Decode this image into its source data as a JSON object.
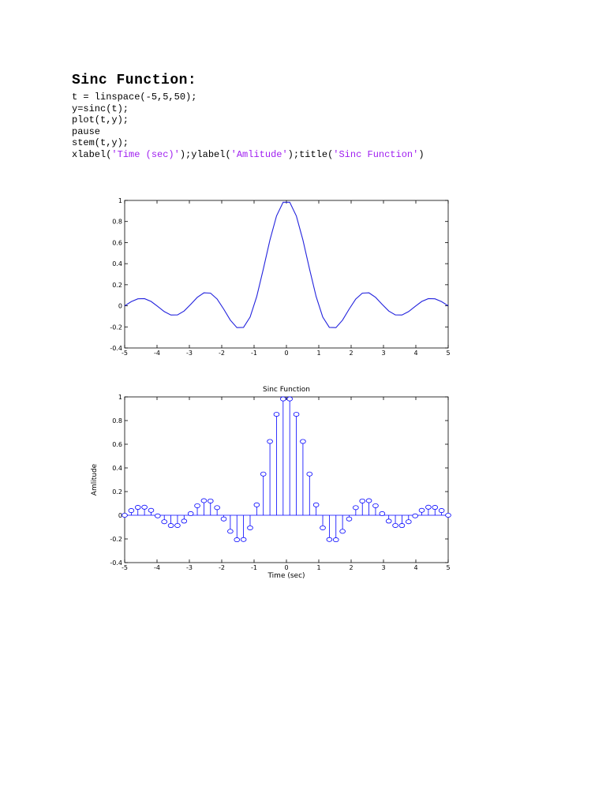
{
  "document": {
    "heading": "Sinc Function:",
    "code_lines": [
      [
        {
          "text": "t = linspace(-5,5,50);"
        }
      ],
      [
        {
          "text": "y=sinc(t);"
        }
      ],
      [
        {
          "text": "plot(t,y);"
        }
      ],
      [
        {
          "text": "pause"
        }
      ],
      [
        {
          "text": "stem(t,y);"
        }
      ],
      [
        {
          "text": "xlabel("
        },
        {
          "text": "'Time (sec)'",
          "str": true
        },
        {
          "text": ");ylabel("
        },
        {
          "text": "'Amlitude'",
          "str": true
        },
        {
          "text": ");title("
        },
        {
          "text": "'Sinc Function'",
          "str": true
        },
        {
          "text": ")"
        }
      ]
    ]
  },
  "colors": {
    "line": "#2222dd",
    "stem": "#0000ff",
    "code_string": "#a020f0"
  },
  "chart_data": [
    {
      "type": "line",
      "title": "",
      "xlabel": "",
      "ylabel": "",
      "function": "sinc(t)",
      "x_linspace": [
        -5,
        5,
        50
      ],
      "xlim": [
        -5,
        5
      ],
      "ylim": [
        -0.4,
        1
      ],
      "xticks": [
        -5,
        -4,
        -3,
        -2,
        -1,
        0,
        1,
        2,
        3,
        4,
        5
      ],
      "yticks": [
        -0.4,
        -0.2,
        0,
        0.2,
        0.4,
        0.6,
        0.8,
        1
      ],
      "x_tick_labels": [
        "-5",
        "-4",
        "-3",
        "-2",
        "-1",
        "0",
        "1",
        "2",
        "3",
        "4",
        "5"
      ],
      "y_tick_labels": [
        "-0.4",
        "-0.2",
        "0",
        "0.2",
        "0.4",
        "0.6",
        "0.8",
        "1"
      ],
      "grid": false
    },
    {
      "type": "stem",
      "title": "Sinc Function",
      "xlabel": "Time (sec)",
      "ylabel": "Amlitude",
      "function": "sinc(t)",
      "x_linspace": [
        -5,
        5,
        50
      ],
      "xlim": [
        -5,
        5
      ],
      "ylim": [
        -0.4,
        1
      ],
      "xticks": [
        -5,
        -4,
        -3,
        -2,
        -1,
        0,
        1,
        2,
        3,
        4,
        5
      ],
      "yticks": [
        -0.4,
        -0.2,
        0,
        0.2,
        0.4,
        0.6,
        0.8,
        1
      ],
      "x_tick_labels": [
        "-5",
        "-4",
        "-3",
        "-2",
        "-1",
        "0",
        "1",
        "2",
        "3",
        "4",
        "5"
      ],
      "y_tick_labels": [
        "-0.4",
        "-0.2",
        "0",
        "0.2",
        "0.4",
        "0.6",
        "0.8",
        "1"
      ],
      "grid": false
    }
  ]
}
